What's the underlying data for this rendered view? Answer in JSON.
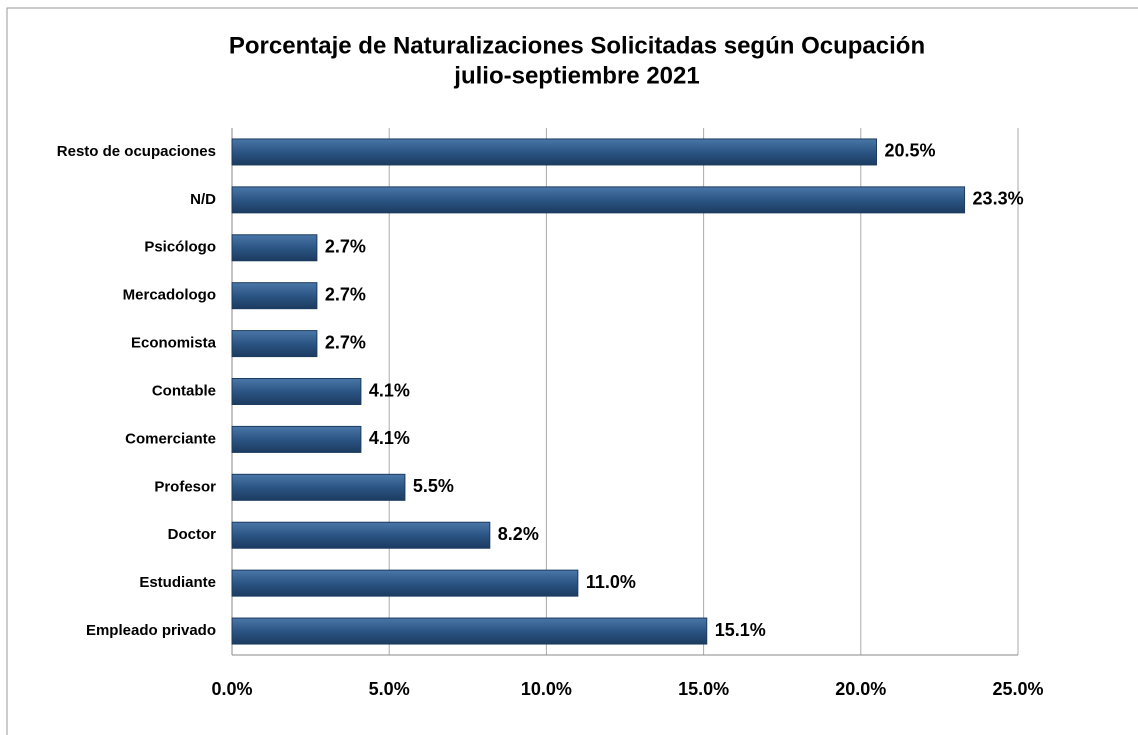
{
  "chart_data": {
    "type": "bar",
    "orientation": "horizontal",
    "title": "Porcentaje de Naturalizaciones Solicitadas según Ocupación",
    "subtitle": "julio-septiembre 2021",
    "categories": [
      "Resto de ocupaciones",
      "N/D",
      "Psicólogo",
      "Mercadologo",
      "Economista",
      "Contable",
      "Comerciante",
      "Profesor",
      "Doctor",
      "Estudiante",
      "Empleado privado"
    ],
    "values": [
      20.5,
      23.3,
      2.7,
      2.7,
      2.7,
      4.1,
      4.1,
      5.5,
      8.2,
      11.0,
      15.1
    ],
    "value_labels": [
      "20.5%",
      "23.3%",
      "2.7%",
      "2.7%",
      "2.7%",
      "4.1%",
      "4.1%",
      "5.5%",
      "8.2%",
      "11.0%",
      "15.1%"
    ],
    "color": "#2b5584",
    "xlim": [
      0,
      25
    ],
    "xticks": [
      {
        "value": 0,
        "label": "0.0%"
      },
      {
        "value": 5,
        "label": "5.0%"
      },
      {
        "value": 10,
        "label": "10.0%"
      },
      {
        "value": 15,
        "label": "15.0%"
      },
      {
        "value": 20,
        "label": "20.0%"
      },
      {
        "value": 25,
        "label": "25.0%"
      }
    ],
    "grid": true
  }
}
